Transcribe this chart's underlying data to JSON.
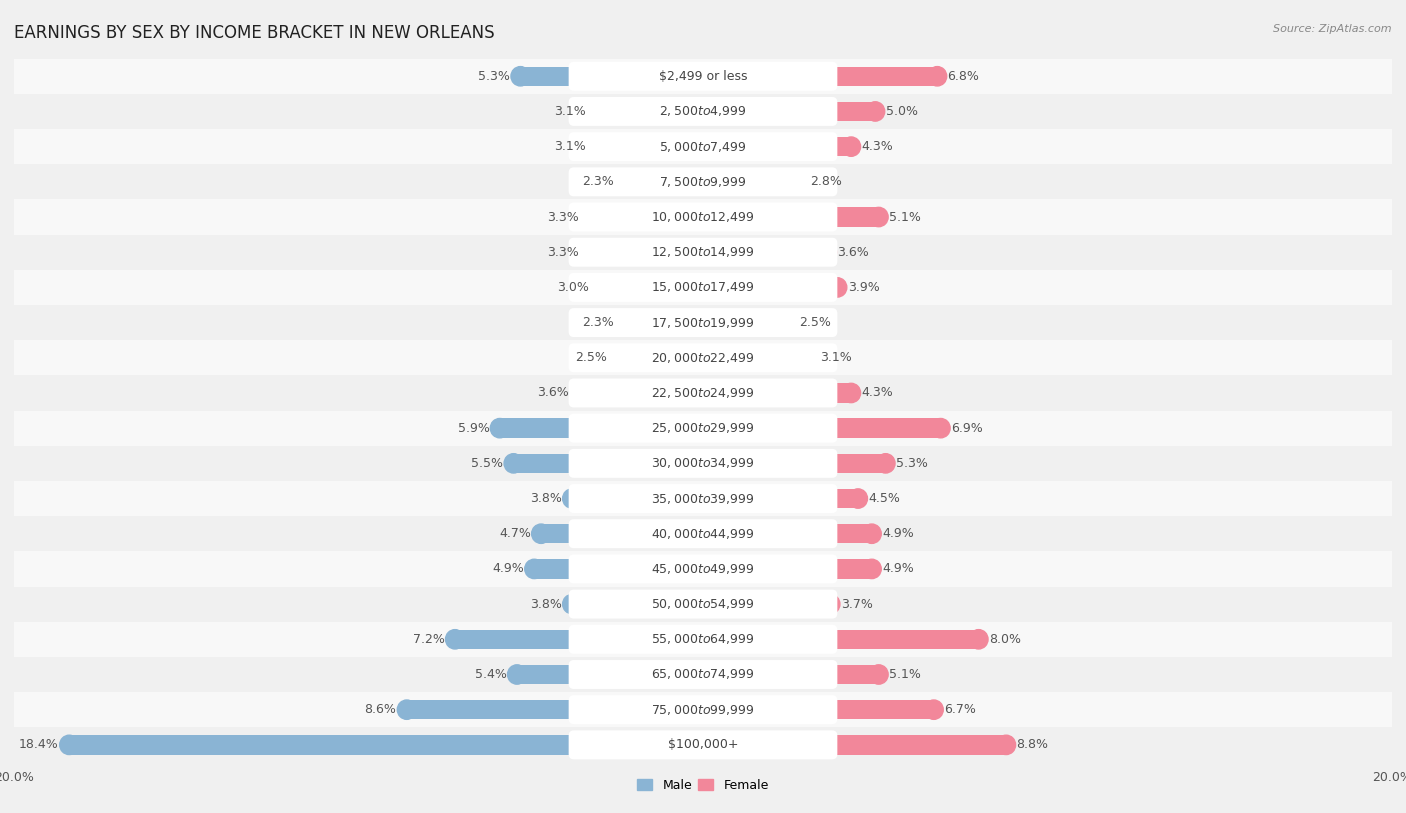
{
  "title": "EARNINGS BY SEX BY INCOME BRACKET IN NEW ORLEANS",
  "source": "Source: ZipAtlas.com",
  "categories": [
    "$2,499 or less",
    "$2,500 to $4,999",
    "$5,000 to $7,499",
    "$7,500 to $9,999",
    "$10,000 to $12,499",
    "$12,500 to $14,999",
    "$15,000 to $17,499",
    "$17,500 to $19,999",
    "$20,000 to $22,499",
    "$22,500 to $24,999",
    "$25,000 to $29,999",
    "$30,000 to $34,999",
    "$35,000 to $39,999",
    "$40,000 to $44,999",
    "$45,000 to $49,999",
    "$50,000 to $54,999",
    "$55,000 to $64,999",
    "$65,000 to $74,999",
    "$75,000 to $99,999",
    "$100,000+"
  ],
  "male_values": [
    5.3,
    3.1,
    3.1,
    2.3,
    3.3,
    3.3,
    3.0,
    2.3,
    2.5,
    3.6,
    5.9,
    5.5,
    3.8,
    4.7,
    4.9,
    3.8,
    7.2,
    5.4,
    8.6,
    18.4
  ],
  "female_values": [
    6.8,
    5.0,
    4.3,
    2.8,
    5.1,
    3.6,
    3.9,
    2.5,
    3.1,
    4.3,
    6.9,
    5.3,
    4.5,
    4.9,
    4.9,
    3.7,
    8.0,
    5.1,
    6.7,
    8.8
  ],
  "male_color": "#8ab4d4",
  "female_color": "#f2879a",
  "row_color_odd": "#f0f0f0",
  "row_color_even": "#f8f8f8",
  "background_color": "#f0f0f0",
  "label_bg_color": "#ffffff",
  "axis_max": 20.0,
  "legend_male": "Male",
  "legend_female": "Female",
  "title_fontsize": 12,
  "label_fontsize": 9,
  "tick_fontsize": 9,
  "value_fontsize": 9
}
